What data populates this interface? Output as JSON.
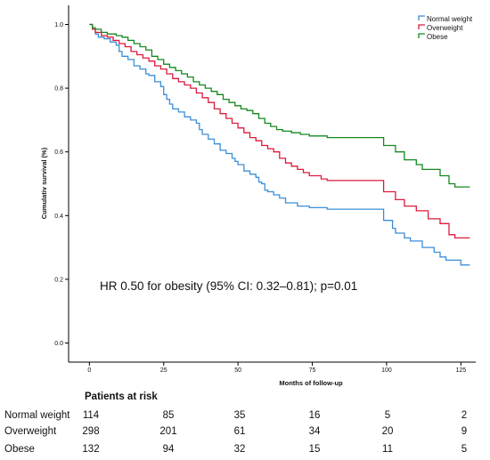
{
  "chart_data": {
    "type": "line",
    "title": "",
    "xlabel": "Months of follow-up",
    "ylabel": "Cumulativ survival (%)",
    "xlim": [
      -7,
      130
    ],
    "ylim": [
      -0.06,
      1.06
    ],
    "x_ticks": [
      0,
      25,
      50,
      75,
      100,
      125
    ],
    "y_ticks": [
      0.0,
      0.2,
      0.4,
      0.6,
      0.8,
      1.0
    ],
    "y_tick_labels": [
      "0.0",
      "0.2",
      "0.4",
      "0.6",
      "0.8",
      "1.0"
    ],
    "grid": false,
    "legend_position": "top-right",
    "step": true,
    "annotation": "HR 0.50 for obesity (95% CI: 0.32–0.81); p=0.01",
    "series": [
      {
        "name": "Normal weight",
        "color": "#3a8ed8",
        "points": [
          [
            0,
            1.0
          ],
          [
            1,
            0.985
          ],
          [
            2,
            0.97
          ],
          [
            3,
            0.96
          ],
          [
            5,
            0.955
          ],
          [
            7,
            0.945
          ],
          [
            9,
            0.935
          ],
          [
            10,
            0.915
          ],
          [
            11,
            0.9
          ],
          [
            13,
            0.89
          ],
          [
            15,
            0.87
          ],
          [
            17,
            0.86
          ],
          [
            19,
            0.845
          ],
          [
            20,
            0.84
          ],
          [
            22,
            0.82
          ],
          [
            24,
            0.805
          ],
          [
            25,
            0.78
          ],
          [
            26,
            0.765
          ],
          [
            27,
            0.75
          ],
          [
            28,
            0.735
          ],
          [
            30,
            0.725
          ],
          [
            32,
            0.71
          ],
          [
            34,
            0.7
          ],
          [
            36,
            0.69
          ],
          [
            37,
            0.67
          ],
          [
            38,
            0.655
          ],
          [
            40,
            0.64
          ],
          [
            42,
            0.625
          ],
          [
            44,
            0.605
          ],
          [
            46,
            0.595
          ],
          [
            48,
            0.58
          ],
          [
            49,
            0.57
          ],
          [
            50,
            0.56
          ],
          [
            52,
            0.54
          ],
          [
            54,
            0.53
          ],
          [
            56,
            0.52
          ],
          [
            57,
            0.505
          ],
          [
            58,
            0.5
          ],
          [
            59,
            0.48
          ],
          [
            60,
            0.475
          ],
          [
            62,
            0.465
          ],
          [
            64,
            0.455
          ],
          [
            66,
            0.44
          ],
          [
            70,
            0.43
          ],
          [
            74,
            0.425
          ],
          [
            80,
            0.42
          ],
          [
            90,
            0.42
          ],
          [
            98,
            0.42
          ],
          [
            99,
            0.385
          ],
          [
            102,
            0.36
          ],
          [
            103,
            0.345
          ],
          [
            106,
            0.33
          ],
          [
            108,
            0.32
          ],
          [
            112,
            0.3
          ],
          [
            116,
            0.285
          ],
          [
            118,
            0.27
          ],
          [
            120,
            0.26
          ],
          [
            125,
            0.245
          ],
          [
            128,
            0.245
          ]
        ]
      },
      {
        "name": "Overweight",
        "color": "#dc1a3c",
        "points": [
          [
            0,
            1.0
          ],
          [
            1,
            0.985
          ],
          [
            2,
            0.975
          ],
          [
            4,
            0.965
          ],
          [
            6,
            0.96
          ],
          [
            8,
            0.95
          ],
          [
            10,
            0.94
          ],
          [
            12,
            0.93
          ],
          [
            14,
            0.915
          ],
          [
            16,
            0.905
          ],
          [
            18,
            0.895
          ],
          [
            20,
            0.885
          ],
          [
            22,
            0.87
          ],
          [
            24,
            0.86
          ],
          [
            26,
            0.845
          ],
          [
            28,
            0.83
          ],
          [
            30,
            0.82
          ],
          [
            32,
            0.81
          ],
          [
            34,
            0.8
          ],
          [
            36,
            0.785
          ],
          [
            38,
            0.77
          ],
          [
            40,
            0.755
          ],
          [
            42,
            0.735
          ],
          [
            44,
            0.72
          ],
          [
            46,
            0.705
          ],
          [
            48,
            0.69
          ],
          [
            50,
            0.675
          ],
          [
            52,
            0.66
          ],
          [
            54,
            0.645
          ],
          [
            56,
            0.635
          ],
          [
            58,
            0.62
          ],
          [
            60,
            0.61
          ],
          [
            62,
            0.6
          ],
          [
            64,
            0.58
          ],
          [
            66,
            0.565
          ],
          [
            68,
            0.555
          ],
          [
            70,
            0.545
          ],
          [
            72,
            0.535
          ],
          [
            74,
            0.525
          ],
          [
            78,
            0.515
          ],
          [
            80,
            0.51
          ],
          [
            90,
            0.51
          ],
          [
            98,
            0.51
          ],
          [
            99,
            0.475
          ],
          [
            103,
            0.45
          ],
          [
            106,
            0.43
          ],
          [
            110,
            0.415
          ],
          [
            114,
            0.39
          ],
          [
            118,
            0.375
          ],
          [
            121,
            0.34
          ],
          [
            123,
            0.33
          ],
          [
            128,
            0.33
          ]
        ]
      },
      {
        "name": "Obese",
        "color": "#15881f",
        "points": [
          [
            0,
            1.0
          ],
          [
            1,
            0.99
          ],
          [
            2,
            0.985
          ],
          [
            4,
            0.975
          ],
          [
            6,
            0.97
          ],
          [
            9,
            0.965
          ],
          [
            11,
            0.96
          ],
          [
            13,
            0.95
          ],
          [
            15,
            0.94
          ],
          [
            17,
            0.93
          ],
          [
            19,
            0.92
          ],
          [
            21,
            0.9
          ],
          [
            23,
            0.89
          ],
          [
            25,
            0.875
          ],
          [
            27,
            0.865
          ],
          [
            29,
            0.855
          ],
          [
            31,
            0.845
          ],
          [
            33,
            0.835
          ],
          [
            35,
            0.82
          ],
          [
            37,
            0.81
          ],
          [
            39,
            0.8
          ],
          [
            41,
            0.79
          ],
          [
            43,
            0.78
          ],
          [
            45,
            0.765
          ],
          [
            47,
            0.755
          ],
          [
            49,
            0.745
          ],
          [
            51,
            0.735
          ],
          [
            53,
            0.73
          ],
          [
            55,
            0.72
          ],
          [
            57,
            0.705
          ],
          [
            59,
            0.69
          ],
          [
            61,
            0.68
          ],
          [
            63,
            0.67
          ],
          [
            65,
            0.665
          ],
          [
            68,
            0.66
          ],
          [
            71,
            0.655
          ],
          [
            74,
            0.65
          ],
          [
            80,
            0.645
          ],
          [
            90,
            0.645
          ],
          [
            98,
            0.645
          ],
          [
            99,
            0.62
          ],
          [
            103,
            0.6
          ],
          [
            106,
            0.575
          ],
          [
            110,
            0.56
          ],
          [
            112,
            0.545
          ],
          [
            118,
            0.525
          ],
          [
            121,
            0.5
          ],
          [
            123,
            0.49
          ],
          [
            128,
            0.49
          ]
        ]
      }
    ]
  },
  "risk_table": {
    "title": "Patients at risk",
    "timepoints": [
      0,
      25,
      50,
      75,
      100,
      125
    ],
    "rows": [
      {
        "label": "Normal weight",
        "values": [
          "114",
          "85",
          "35",
          "16",
          "5",
          "2"
        ]
      },
      {
        "label": "Overweight",
        "values": [
          "298",
          "201",
          "61",
          "34",
          "20",
          "9"
        ]
      },
      {
        "label": "Obese",
        "values": [
          "132",
          "94",
          "32",
          "15",
          "11",
          "5"
        ]
      }
    ]
  }
}
